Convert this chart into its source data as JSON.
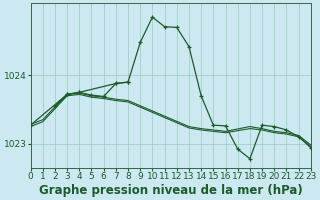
{
  "background_color": "#cce8f0",
  "plot_bg_color": "#cce8f0",
  "grid_color": "#99ccbb",
  "line_color": "#1a5c2a",
  "title": "Graphe pression niveau de la mer (hPa)",
  "xlim": [
    0,
    23
  ],
  "ylim": [
    1022.65,
    1025.05
  ],
  "yticks": [
    1023,
    1024
  ],
  "xticks": [
    0,
    1,
    2,
    3,
    4,
    5,
    6,
    7,
    8,
    9,
    10,
    11,
    12,
    13,
    14,
    15,
    16,
    17,
    18,
    19,
    20,
    21,
    22,
    23
  ],
  "title_fontsize": 8.5,
  "tick_fontsize": 6.5,
  "series1_x": [
    0,
    1,
    3,
    4,
    5,
    6,
    7,
    8,
    13,
    14,
    15,
    16,
    18,
    19,
    20,
    21,
    22,
    23
  ],
  "series1_y": [
    1023.28,
    1023.35,
    1023.72,
    1023.74,
    1023.7,
    1023.68,
    1023.65,
    1023.63,
    1023.25,
    1023.22,
    1023.2,
    1023.18,
    1023.25,
    1023.22,
    1023.18,
    1023.16,
    1023.12,
    1022.98
  ],
  "series2_x": [
    0,
    1,
    3,
    4,
    5,
    6,
    7,
    8,
    13,
    14,
    15,
    16,
    18,
    19,
    20,
    21,
    22,
    23
  ],
  "series2_y": [
    1023.25,
    1023.32,
    1023.7,
    1023.72,
    1023.68,
    1023.66,
    1023.63,
    1023.61,
    1023.23,
    1023.2,
    1023.18,
    1023.16,
    1023.22,
    1023.2,
    1023.16,
    1023.14,
    1023.1,
    1022.96
  ],
  "series3_x": [
    0,
    3,
    4,
    5,
    6,
    7,
    8,
    9,
    10,
    11,
    12,
    13,
    14,
    15,
    16,
    17,
    18,
    19,
    20,
    21,
    22,
    23
  ],
  "series3_y": [
    1023.27,
    1023.72,
    1023.75,
    1023.71,
    1023.69,
    1023.88,
    1023.9,
    1024.48,
    1024.85,
    1024.71,
    1024.7,
    1024.42,
    1023.7,
    1023.27,
    1023.26,
    1022.92,
    1022.78,
    1023.27,
    1023.25,
    1023.2,
    1023.1,
    1022.94
  ],
  "series4_x": [
    2,
    3,
    4,
    7,
    8
  ],
  "series4_y": [
    1023.55,
    1023.72,
    1023.75,
    1023.88,
    1023.9
  ]
}
